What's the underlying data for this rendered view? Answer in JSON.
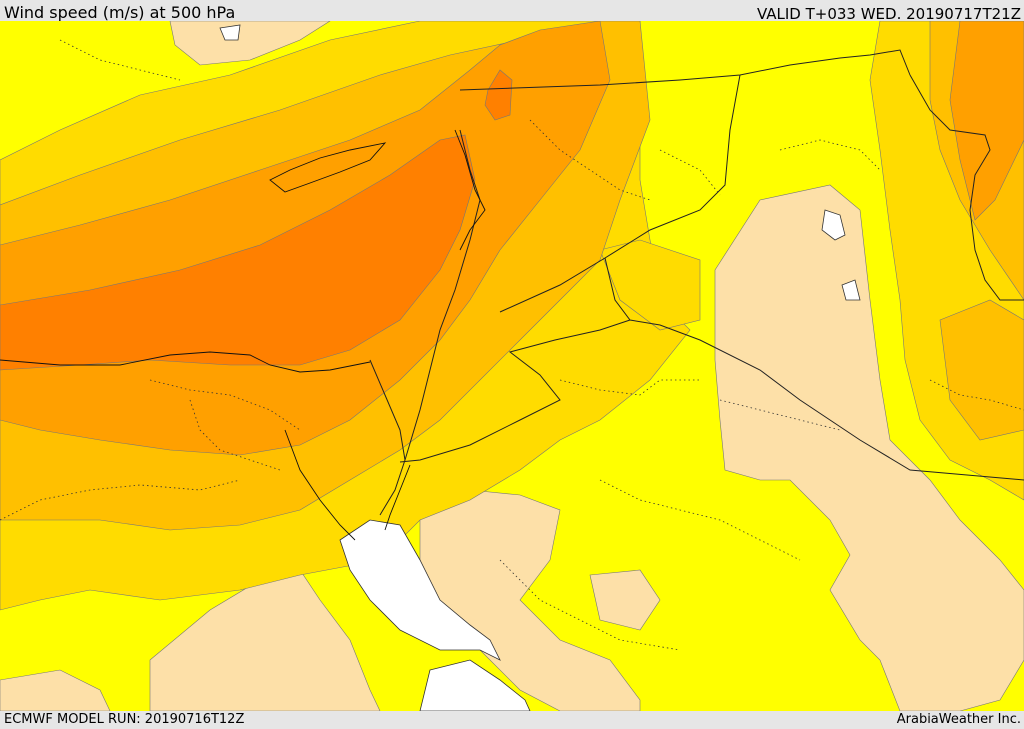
{
  "header": {
    "title": "Wind speed (m/s) at 500 hPa",
    "valid": "VALID T+033 WED. 20190717T21Z"
  },
  "footer": {
    "model_run": "ECMWF MODEL RUN: 20190716T12Z",
    "credit": "ArabiaWeather Inc."
  },
  "colors": {
    "shade_lightest": "#fde0a8",
    "shade_yellow": "#ffff00",
    "shade_gold": "#ffdc00",
    "shade_amber": "#ffc000",
    "shade_orange": "#ffa000",
    "shade_dark_orange": "#ff8000",
    "water_no_data": "#ffffff",
    "bars": "#e6e6e6"
  }
}
